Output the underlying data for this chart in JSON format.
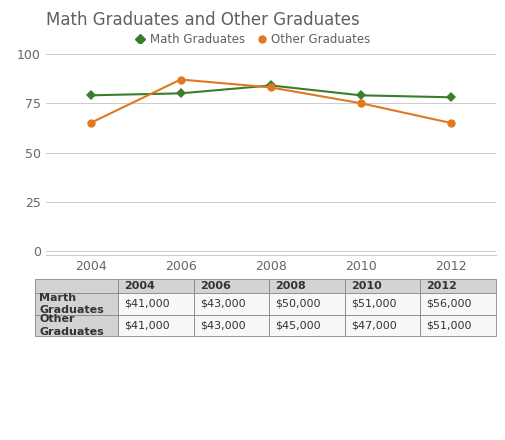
{
  "title": "Math Graduates and Other Graduates",
  "years": [
    2004,
    2006,
    2008,
    2010,
    2012
  ],
  "math_values": [
    79,
    80,
    84,
    79,
    78
  ],
  "other_values": [
    65,
    87,
    83,
    75,
    65
  ],
  "math_color": "#3a7d2c",
  "other_color": "#e07820",
  "legend_labels": [
    "Math Graduates",
    "Other Graduates"
  ],
  "yticks": [
    0,
    25,
    50,
    75,
    100
  ],
  "ylim": [
    -2,
    105
  ],
  "table_header_years": [
    "2004",
    "2006",
    "2008",
    "2010",
    "2012"
  ],
  "table_row1_label": "Marth\nGraduates",
  "table_row2_label": "Other\nGraduates",
  "table_row1_values": [
    "$41,000",
    "$43,000",
    "$50,000",
    "$51,000",
    "$56,000"
  ],
  "table_row2_values": [
    "$41,000",
    "$43,000",
    "$45,000",
    "$47,000",
    "$51,000"
  ],
  "header_bg": "#d3d3d3",
  "row_bg": "#f8f8f8",
  "label_bg": "#d3d3d3",
  "table_border": "#888888",
  "bg_color": "#ffffff",
  "title_fontsize": 12,
  "axis_fontsize": 9,
  "legend_fontsize": 8.5,
  "table_fontsize": 8
}
